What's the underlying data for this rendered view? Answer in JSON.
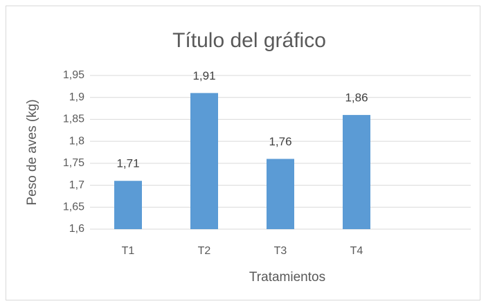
{
  "chart_data": {
    "type": "bar",
    "title": "Título del gráfico",
    "x_label": "Tratamientos",
    "y_label": "Peso de aves (kg)",
    "categories": [
      "T1",
      "T2",
      "T3",
      "T4",
      null
    ],
    "values": [
      1.71,
      1.91,
      1.76,
      1.86,
      null
    ],
    "value_labels": [
      "1,71",
      "1,91",
      "1,76",
      "1,86",
      null
    ],
    "color": "#5b9bd5",
    "ylim": [
      1.6,
      1.95
    ],
    "yticks": [
      {
        "value": 1.6,
        "label": "1,6"
      },
      {
        "value": 1.65,
        "label": "1,65"
      },
      {
        "value": 1.7,
        "label": "1,7"
      },
      {
        "value": 1.75,
        "label": "1,75"
      },
      {
        "value": 1.8,
        "label": "1,8"
      },
      {
        "value": 1.85,
        "label": "1,85"
      },
      {
        "value": 1.9,
        "label": "1,9"
      },
      {
        "value": 1.95,
        "label": "1,95"
      }
    ],
    "grid": true
  }
}
